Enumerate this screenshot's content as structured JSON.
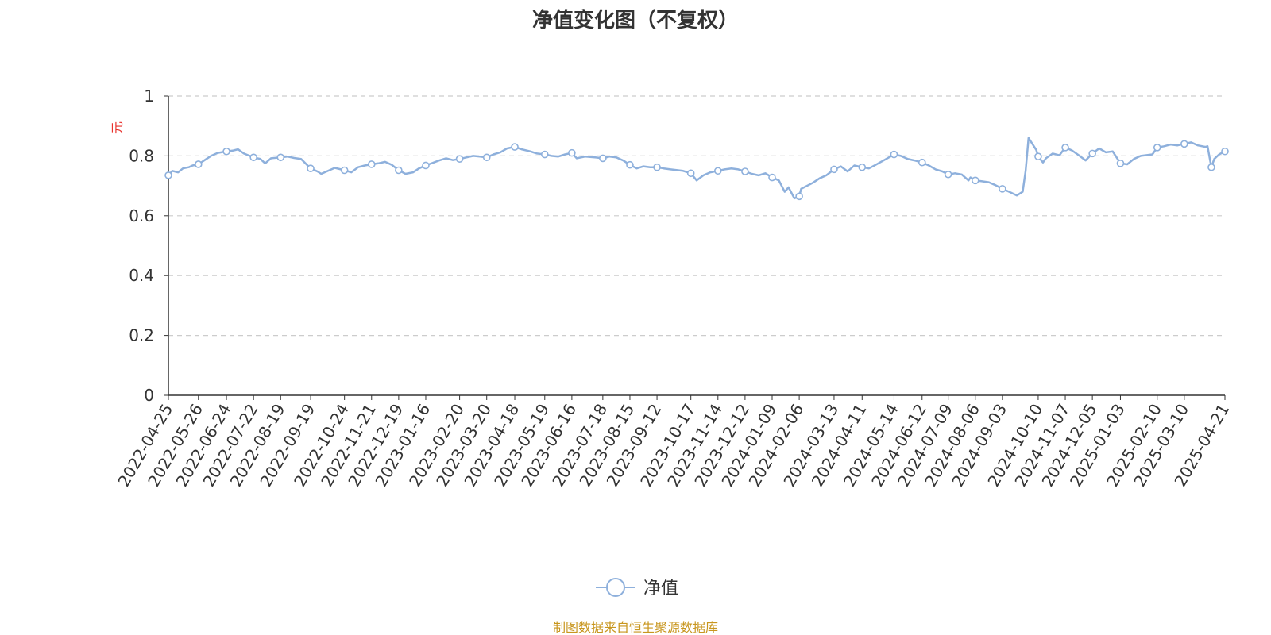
{
  "colors": {
    "series": "#8eb0dc",
    "axis": "#333333",
    "grid": "#cccccc",
    "unit": "#e8322d",
    "source": "#c8961e",
    "text": "#333333"
  },
  "chart_data": {
    "type": "line",
    "title": "净值变化图（不复权）",
    "ylabel": "元",
    "ylim": [
      0,
      1
    ],
    "yticks": [
      "0",
      "0.2",
      "0.4",
      "0.6",
      "0.8",
      "1"
    ],
    "grid": true,
    "legend": "bottom-center",
    "x_ticks": [
      "2022-04-25",
      "2022-05-26",
      "2022-06-24",
      "2022-07-22",
      "2022-08-19",
      "2022-09-19",
      "2022-10-24",
      "2022-11-21",
      "2022-12-19",
      "2023-01-16",
      "2023-02-20",
      "2023-03-20",
      "2023-04-18",
      "2023-05-19",
      "2023-06-16",
      "2023-07-18",
      "2023-08-15",
      "2023-09-12",
      "2023-10-17",
      "2023-11-14",
      "2023-12-12",
      "2024-01-09",
      "2024-02-06",
      "2024-03-13",
      "2024-04-11",
      "2024-05-14",
      "2024-06-12",
      "2024-07-09",
      "2024-08-06",
      "2024-09-03",
      "2024-10-10",
      "2024-11-07",
      "2024-12-05",
      "2025-01-03",
      "2025-02-10",
      "2025-03-10",
      "2025-04-21"
    ],
    "series": [
      {
        "name": "净值",
        "points": [
          [
            "2022-04-25",
            0.735
          ],
          [
            "2022-04-29",
            0.75
          ],
          [
            "2022-05-05",
            0.745
          ],
          [
            "2022-05-10",
            0.758
          ],
          [
            "2022-05-16",
            0.762
          ],
          [
            "2022-05-20",
            0.768
          ],
          [
            "2022-05-26",
            0.772
          ],
          [
            "2022-06-01",
            0.785
          ],
          [
            "2022-06-08",
            0.8
          ],
          [
            "2022-06-15",
            0.81
          ],
          [
            "2022-06-24",
            0.815
          ],
          [
            "2022-07-01",
            0.818
          ],
          [
            "2022-07-06",
            0.822
          ],
          [
            "2022-07-12",
            0.808
          ],
          [
            "2022-07-22",
            0.795
          ],
          [
            "2022-07-29",
            0.79
          ],
          [
            "2022-08-03",
            0.775
          ],
          [
            "2022-08-09",
            0.792
          ],
          [
            "2022-08-19",
            0.795
          ],
          [
            "2022-08-26",
            0.798
          ],
          [
            "2022-09-02",
            0.793
          ],
          [
            "2022-09-09",
            0.79
          ],
          [
            "2022-09-19",
            0.758
          ],
          [
            "2022-09-26",
            0.748
          ],
          [
            "2022-09-30",
            0.74
          ],
          [
            "2022-10-14",
            0.76
          ],
          [
            "2022-10-24",
            0.752
          ],
          [
            "2022-10-31",
            0.745
          ],
          [
            "2022-11-07",
            0.762
          ],
          [
            "2022-11-14",
            0.768
          ],
          [
            "2022-11-21",
            0.772
          ],
          [
            "2022-11-28",
            0.775
          ],
          [
            "2022-12-05",
            0.78
          ],
          [
            "2022-12-12",
            0.77
          ],
          [
            "2022-12-19",
            0.752
          ],
          [
            "2022-12-26",
            0.74
          ],
          [
            "2023-01-03",
            0.745
          ],
          [
            "2023-01-09",
            0.758
          ],
          [
            "2023-01-16",
            0.768
          ],
          [
            "2023-01-30",
            0.785
          ],
          [
            "2023-02-06",
            0.792
          ],
          [
            "2023-02-13",
            0.786
          ],
          [
            "2023-02-20",
            0.79
          ],
          [
            "2023-02-27",
            0.795
          ],
          [
            "2023-03-06",
            0.8
          ],
          [
            "2023-03-13",
            0.798
          ],
          [
            "2023-03-20",
            0.795
          ],
          [
            "2023-03-27",
            0.805
          ],
          [
            "2023-04-03",
            0.812
          ],
          [
            "2023-04-10",
            0.825
          ],
          [
            "2023-04-18",
            0.83
          ],
          [
            "2023-04-25",
            0.822
          ],
          [
            "2023-05-04",
            0.815
          ],
          [
            "2023-05-11",
            0.808
          ],
          [
            "2023-05-19",
            0.805
          ],
          [
            "2023-05-26",
            0.8
          ],
          [
            "2023-06-02",
            0.798
          ],
          [
            "2023-06-09",
            0.805
          ],
          [
            "2023-06-16",
            0.81
          ],
          [
            "2023-06-21",
            0.792
          ],
          [
            "2023-06-30",
            0.798
          ],
          [
            "2023-07-10",
            0.795
          ],
          [
            "2023-07-18",
            0.792
          ],
          [
            "2023-07-25",
            0.798
          ],
          [
            "2023-08-01",
            0.795
          ],
          [
            "2023-08-08",
            0.785
          ],
          [
            "2023-08-15",
            0.77
          ],
          [
            "2023-08-22",
            0.758
          ],
          [
            "2023-08-29",
            0.765
          ],
          [
            "2023-09-05",
            0.762
          ],
          [
            "2023-09-12",
            0.762
          ],
          [
            "2023-09-19",
            0.758
          ],
          [
            "2023-09-26",
            0.755
          ],
          [
            "2023-10-09",
            0.75
          ],
          [
            "2023-10-17",
            0.742
          ],
          [
            "2023-10-23",
            0.718
          ],
          [
            "2023-10-30",
            0.735
          ],
          [
            "2023-11-06",
            0.745
          ],
          [
            "2023-11-14",
            0.75
          ],
          [
            "2023-11-21",
            0.755
          ],
          [
            "2023-11-28",
            0.758
          ],
          [
            "2023-12-05",
            0.755
          ],
          [
            "2023-12-12",
            0.748
          ],
          [
            "2023-12-19",
            0.74
          ],
          [
            "2023-12-26",
            0.735
          ],
          [
            "2024-01-02",
            0.742
          ],
          [
            "2024-01-09",
            0.728
          ],
          [
            "2024-01-16",
            0.718
          ],
          [
            "2024-01-22",
            0.68
          ],
          [
            "2024-01-26",
            0.695
          ],
          [
            "2024-02-01",
            0.658
          ],
          [
            "2024-02-06",
            0.665
          ],
          [
            "2024-02-08",
            0.69
          ],
          [
            "2024-02-20",
            0.71
          ],
          [
            "2024-02-27",
            0.725
          ],
          [
            "2024-03-05",
            0.735
          ],
          [
            "2024-03-13",
            0.755
          ],
          [
            "2024-03-20",
            0.765
          ],
          [
            "2024-03-27",
            0.748
          ],
          [
            "2024-04-03",
            0.768
          ],
          [
            "2024-04-11",
            0.762
          ],
          [
            "2024-04-18",
            0.758
          ],
          [
            "2024-04-25",
            0.77
          ],
          [
            "2024-05-06",
            0.79
          ],
          [
            "2024-05-14",
            0.805
          ],
          [
            "2024-05-21",
            0.8
          ],
          [
            "2024-05-28",
            0.79
          ],
          [
            "2024-06-04",
            0.785
          ],
          [
            "2024-06-12",
            0.778
          ],
          [
            "2024-06-19",
            0.768
          ],
          [
            "2024-06-26",
            0.755
          ],
          [
            "2024-07-03",
            0.748
          ],
          [
            "2024-07-09",
            0.738
          ],
          [
            "2024-07-16",
            0.742
          ],
          [
            "2024-07-23",
            0.738
          ],
          [
            "2024-07-30",
            0.718
          ],
          [
            "2024-08-01",
            0.728
          ],
          [
            "2024-08-06",
            0.718
          ],
          [
            "2024-08-13",
            0.715
          ],
          [
            "2024-08-20",
            0.712
          ],
          [
            "2024-08-27",
            0.702
          ],
          [
            "2024-09-03",
            0.69
          ],
          [
            "2024-09-10",
            0.68
          ],
          [
            "2024-09-18",
            0.668
          ],
          [
            "2024-09-24",
            0.68
          ],
          [
            "2024-09-27",
            0.75
          ],
          [
            "2024-09-30",
            0.86
          ],
          [
            "2024-10-08",
            0.82
          ],
          [
            "2024-10-10",
            0.798
          ],
          [
            "2024-10-15",
            0.778
          ],
          [
            "2024-10-18",
            0.792
          ],
          [
            "2024-10-25",
            0.808
          ],
          [
            "2024-11-01",
            0.802
          ],
          [
            "2024-11-07",
            0.828
          ],
          [
            "2024-11-14",
            0.818
          ],
          [
            "2024-11-21",
            0.802
          ],
          [
            "2024-11-28",
            0.785
          ],
          [
            "2024-12-05",
            0.808
          ],
          [
            "2024-12-12",
            0.825
          ],
          [
            "2024-12-19",
            0.812
          ],
          [
            "2024-12-26",
            0.815
          ],
          [
            "2025-01-03",
            0.775
          ],
          [
            "2025-01-10",
            0.772
          ],
          [
            "2025-01-17",
            0.79
          ],
          [
            "2025-01-24",
            0.8
          ],
          [
            "2025-02-05",
            0.805
          ],
          [
            "2025-02-10",
            0.828
          ],
          [
            "2025-02-17",
            0.832
          ],
          [
            "2025-02-24",
            0.838
          ],
          [
            "2025-03-03",
            0.835
          ],
          [
            "2025-03-10",
            0.84
          ],
          [
            "2025-03-17",
            0.845
          ],
          [
            "2025-03-24",
            0.835
          ],
          [
            "2025-04-01",
            0.83
          ],
          [
            "2025-04-03",
            0.832
          ],
          [
            "2025-04-07",
            0.762
          ],
          [
            "2025-04-10",
            0.79
          ],
          [
            "2025-04-15",
            0.805
          ],
          [
            "2025-04-21",
            0.815
          ]
        ],
        "marked": [
          "2022-04-25",
          "2022-05-26",
          "2022-06-24",
          "2022-07-22",
          "2022-08-19",
          "2022-09-19",
          "2022-10-24",
          "2022-11-21",
          "2022-12-19",
          "2023-01-16",
          "2023-02-20",
          "2023-03-20",
          "2023-04-18",
          "2023-05-19",
          "2023-06-16",
          "2023-07-18",
          "2023-08-15",
          "2023-09-12",
          "2023-10-17",
          "2023-11-14",
          "2023-12-12",
          "2024-01-09",
          "2024-02-06",
          "2024-03-13",
          "2024-04-11",
          "2024-05-14",
          "2024-06-12",
          "2024-07-09",
          "2024-08-06",
          "2024-09-03",
          "2024-10-10",
          "2024-11-07",
          "2024-12-05",
          "2025-01-03",
          "2025-02-10",
          "2025-03-10",
          "2025-04-07",
          "2025-04-21"
        ]
      }
    ]
  },
  "source": "制图数据来自恒生聚源数据库"
}
